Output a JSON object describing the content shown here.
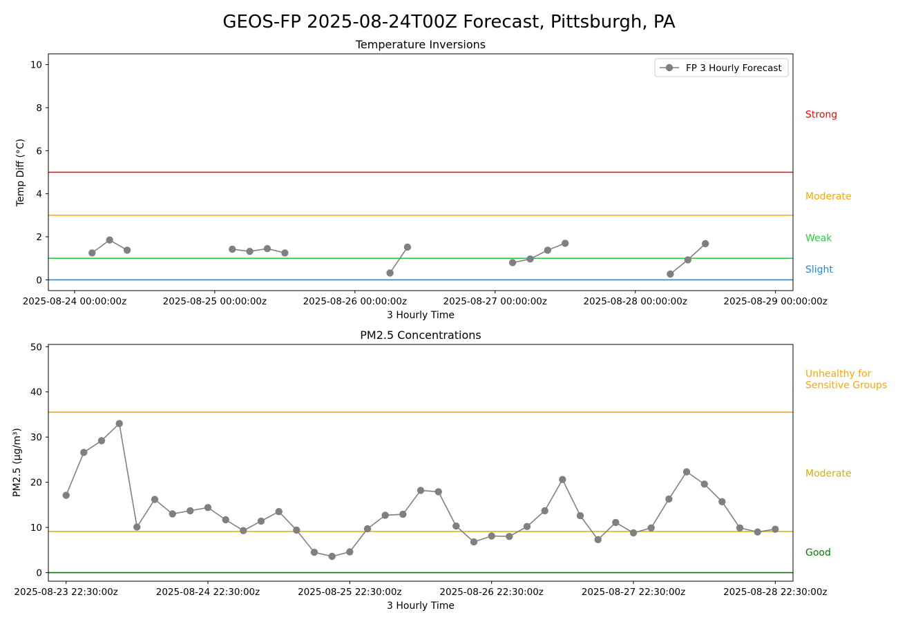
{
  "title": "GEOS-FP 2025-08-24T00Z Forecast, Pittsburgh, PA",
  "series_color": "#808080",
  "chart_data": [
    {
      "type": "line",
      "title": "Temperature Inversions",
      "xlabel": "3 Hourly Time",
      "ylabel": "Temp Diff (°C)",
      "ylim": [
        -0.5,
        10.5
      ],
      "yticks": [
        0,
        2,
        4,
        6,
        8,
        10
      ],
      "xlim": [
        -0.187,
        5.125
      ],
      "xticks": [
        0,
        1,
        2,
        3,
        4,
        5
      ],
      "xtick_labels": [
        "2025-08-24 00:00:00z",
        "2025-08-25 00:00:00z",
        "2025-08-26 00:00:00z",
        "2025-08-27 00:00:00z",
        "2025-08-28 00:00:00z",
        "2025-08-29 00:00:00z"
      ],
      "x_unit": "days from 2025-08-24 00:00:00z",
      "grid": false,
      "legend": {
        "position": "top-right",
        "entries": [
          "FP 3 Hourly Forecast"
        ]
      },
      "series": [
        {
          "name": "FP 3 Hourly Forecast",
          "color": "#808080",
          "segments": [
            [
              [
                0.125,
                1.25
              ],
              [
                0.25,
                1.85
              ],
              [
                0.375,
                1.38
              ]
            ],
            [
              [
                1.125,
                1.42
              ],
              [
                1.25,
                1.32
              ],
              [
                1.375,
                1.45
              ],
              [
                1.5,
                1.25
              ]
            ],
            [
              [
                2.25,
                0.32
              ],
              [
                2.375,
                1.52
              ]
            ],
            [
              [
                3.125,
                0.8
              ],
              [
                3.25,
                0.97
              ],
              [
                3.375,
                1.38
              ],
              [
                3.5,
                1.7
              ]
            ],
            [
              [
                4.25,
                0.27
              ],
              [
                4.375,
                0.93
              ],
              [
                4.5,
                1.68
              ]
            ]
          ]
        }
      ],
      "thresholds": [
        {
          "value": 0,
          "color": "#1e88e5"
        },
        {
          "value": 1,
          "color": "#2ecc40"
        },
        {
          "value": 3,
          "color": "#ffa500"
        },
        {
          "value": 5,
          "color": "#ff0000"
        }
      ],
      "band_labels": [
        {
          "text": "Strong",
          "y": 7.7,
          "color": "#ff0000"
        },
        {
          "text": "Moderate",
          "y": 3.9,
          "color": "#ffa500"
        },
        {
          "text": "Weak",
          "y": 1.95,
          "color": "#2ecc40"
        },
        {
          "text": "Slight",
          "y": 0.5,
          "color": "#1e88e5"
        }
      ]
    },
    {
      "type": "line",
      "title": "PM2.5 Concentrations",
      "xlabel": "3 Hourly Time",
      "ylabel": "PM2.5 (µg/m³)",
      "ylim": [
        -1.9,
        50.5
      ],
      "yticks": [
        0,
        10,
        20,
        30,
        40,
        50
      ],
      "xlim": [
        -0.125,
        5.125
      ],
      "xticks": [
        0,
        1,
        2,
        3,
        4,
        5
      ],
      "xtick_labels": [
        "2025-08-23 22:30:00z",
        "2025-08-24 22:30:00z",
        "2025-08-25 22:30:00z",
        "2025-08-26 22:30:00z",
        "2025-08-27 22:30:00z",
        "2025-08-28 22:30:00z"
      ],
      "x_unit": "days from 2025-08-23 22:30:00z",
      "grid": false,
      "series": [
        {
          "name": "",
          "color": "#808080",
          "x_step": 0.125,
          "values": [
            17.1,
            26.6,
            29.2,
            33.0,
            10.1,
            16.2,
            13.0,
            13.7,
            14.4,
            11.7,
            9.3,
            11.4,
            13.5,
            9.4,
            4.5,
            3.6,
            4.6,
            9.7,
            12.7,
            12.9,
            18.2,
            17.9,
            10.3,
            6.8,
            8.1,
            8.0,
            10.2,
            13.7,
            20.6,
            12.6,
            7.3,
            11.1,
            8.8,
            9.9,
            16.3,
            22.3,
            19.6,
            15.7,
            9.9,
            9.0,
            9.6
          ]
        }
      ],
      "thresholds": [
        {
          "value": 0,
          "color": "#008000"
        },
        {
          "value": 9.1,
          "color": "#d4b106"
        },
        {
          "value": 35.5,
          "color": "#ffa500"
        }
      ],
      "band_labels": [
        {
          "text": "Unhealthy for",
          "y": 44.1,
          "color": "#ffa500"
        },
        {
          "text": "Sensitive Groups",
          "y": 41.6,
          "color": "#ffa500"
        },
        {
          "text": "Moderate",
          "y": 22.0,
          "color": "#d4b106"
        },
        {
          "text": "Good",
          "y": 4.5,
          "color": "#008000"
        }
      ]
    }
  ]
}
